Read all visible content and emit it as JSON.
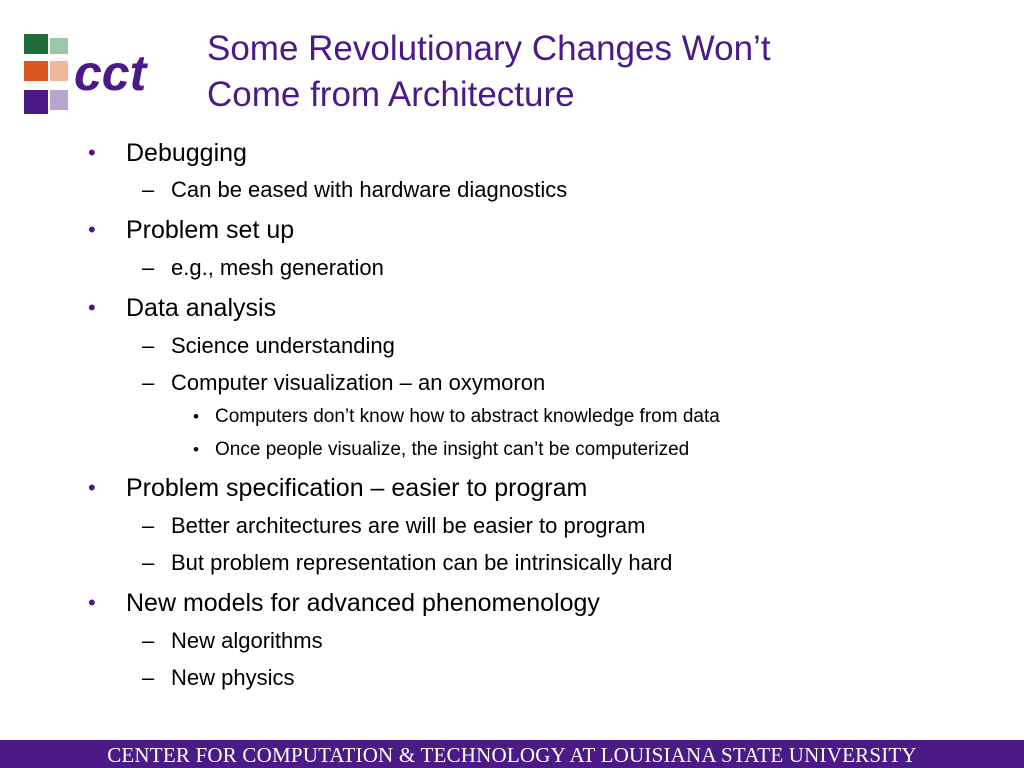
{
  "logo": {
    "text": "cct",
    "colors": {
      "primary": "#4b1a87",
      "orange": "#d9561c",
      "green": "#1f6b3a",
      "light_purple": "#b7a4cf",
      "light_orange": "#f1b79a",
      "light_green": "#9cc7a7"
    }
  },
  "title": {
    "line1": "Some Revolutionary Changes Won’t",
    "line2": "Come from Architecture"
  },
  "bullets": [
    {
      "level": 1,
      "marker": "•",
      "text": "Debugging"
    },
    {
      "level": 2,
      "marker": "–",
      "text": "Can be eased with hardware diagnostics"
    },
    {
      "level": 1,
      "marker": "•",
      "text": "Problem set up"
    },
    {
      "level": 2,
      "marker": "–",
      "text": "e.g., mesh generation"
    },
    {
      "level": 1,
      "marker": "•",
      "text": "Data analysis"
    },
    {
      "level": 2,
      "marker": "–",
      "text": "Science understanding"
    },
    {
      "level": 2,
      "marker": "–",
      "text": "Computer visualization – an oxymoron"
    },
    {
      "level": 3,
      "marker": "•",
      "text": "Computers don’t know how to abstract knowledge from data"
    },
    {
      "level": 3,
      "marker": "•",
      "text": "Once people visualize, the insight can’t be computerized"
    },
    {
      "level": 1,
      "marker": "•",
      "text": "Problem specification – easier to program"
    },
    {
      "level": 2,
      "marker": "–",
      "text": "Better architectures are will be easier to program"
    },
    {
      "level": 2,
      "marker": "–",
      "text": "But problem representation can be intrinsically hard"
    },
    {
      "level": 1,
      "marker": "•",
      "text": "New models for advanced phenomenology"
    },
    {
      "level": 2,
      "marker": "–",
      "text": "New algorithms"
    },
    {
      "level": 2,
      "marker": "–",
      "text": "New physics"
    }
  ],
  "footer": {
    "text": "CENTER FOR COMPUTATION & TECHNOLOGY AT LOUISIANA STATE UNIVERSITY",
    "background": "#4b1a87"
  }
}
